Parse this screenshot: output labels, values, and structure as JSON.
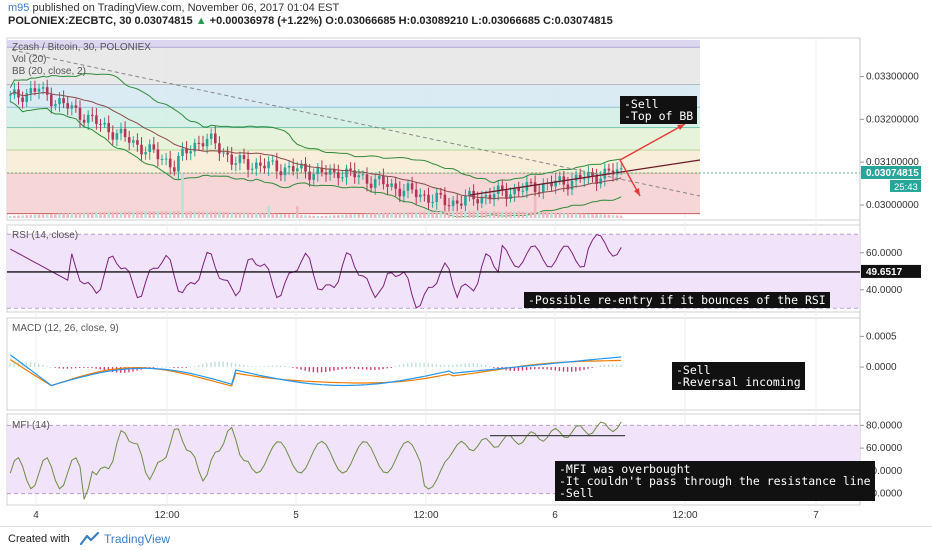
{
  "header": {
    "user": "m95",
    "published": "published on TradingView.com, November 06, 2017 01:04 EST",
    "symbol_line_prefix": "POLONIEX:ZECBTC, 30  0.03074815",
    "change": "+0.00036978 (+1.22%)",
    "ohlc": "O:0.03066685  H:0.03089210  L:0.03066685  C:0.03074815"
  },
  "footer": {
    "created_with": "Created with",
    "brand": "TradingView"
  },
  "colors": {
    "candle_up": "#26a69a",
    "candle_down": "#b33456",
    "rsi_line": "#7b1f7a",
    "macd_line": "#2196f3",
    "signal_line": "#ef7b00",
    "mfi_line": "#6d8c45",
    "annotation_arrow": "#e53935"
  },
  "chart_data": {
    "type": "candlestick",
    "panes": {
      "price": {
        "labels": [
          "Zcash / Bitcoin, 30, POLONIEX",
          "Vol (20)",
          "BB (20, close, 2)"
        ],
        "ylim": [
          0.02965,
          0.0339
        ],
        "yticks": [
          "0.03300000",
          "0.03200000",
          "0.03100000",
          "0.03000000"
        ],
        "last_price": "0.03074815",
        "countdown": "25:43",
        "fib_levels": [
          0.03368,
          0.03281,
          0.03228,
          0.0318,
          0.03128,
          0.03074,
          0.0298
        ]
      },
      "rsi": {
        "label": "RSI (14, close)",
        "ylim": [
          28,
          75
        ],
        "yticks": [
          "60.0000",
          "40.0000"
        ],
        "last": "49.6517",
        "bands": [
          70,
          30
        ],
        "horizontal_line": 49.65
      },
      "macd": {
        "label": "MACD (12, 26, close, 9)",
        "ylim": [
          -0.0007,
          0.0008
        ],
        "yticks": [
          "0.0005",
          "0.0000"
        ]
      },
      "mfi": {
        "label": "MFI (14)",
        "ylim": [
          10,
          90
        ],
        "yticks": [
          "80.0000",
          "60.0000",
          "40.0000",
          "20.0000"
        ],
        "bands": [
          80,
          20
        ],
        "resistance_level": 71
      }
    },
    "time_axis": [
      "4",
      "12:00",
      "5",
      "12:00",
      "6",
      "12:00",
      "7"
    ],
    "annotations": [
      "-Sell\n-Top of BB",
      "-Possible re-entry if it bounces of the RSI",
      "-Sell\n-Reversal incoming",
      "-MFI was overbought\n-It couldn't pass through the resistance line\n-Sell"
    ]
  }
}
